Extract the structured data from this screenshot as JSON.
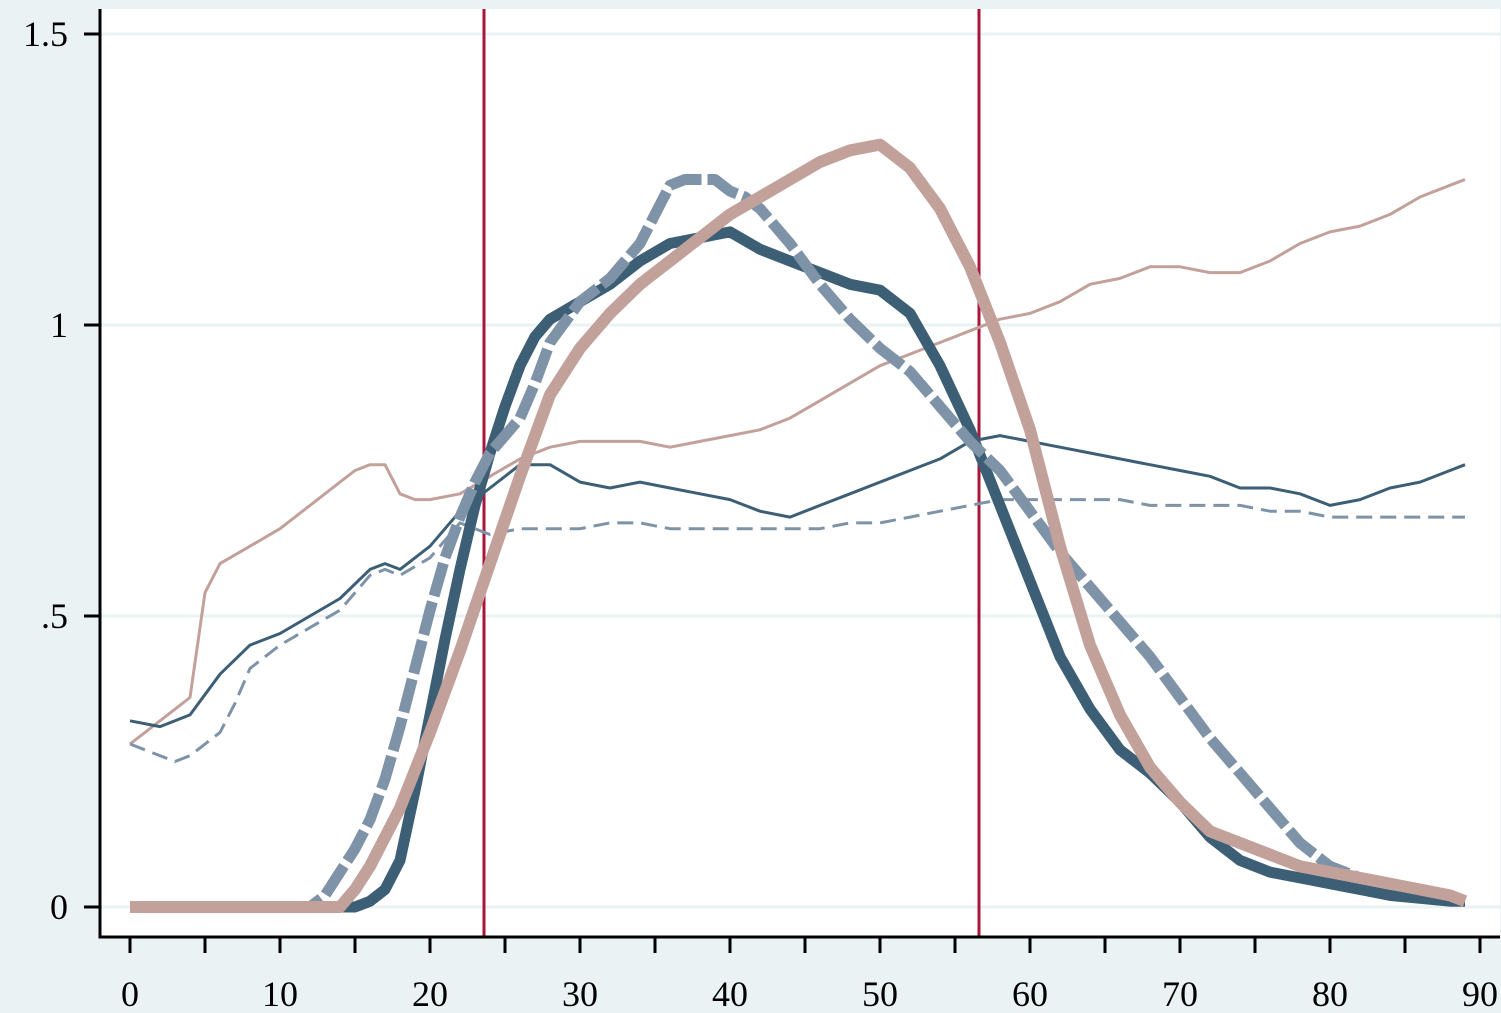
{
  "chart_data": {
    "type": "line",
    "title": "",
    "xlabel": "",
    "ylabel": "",
    "xlim": [
      -1,
      91
    ],
    "ylim": [
      -0.055,
      1.55
    ],
    "x_ticks_major": [
      0,
      10,
      20,
      30,
      40,
      50,
      60,
      70,
      80,
      90
    ],
    "x_tick_labels": [
      "0",
      "10",
      "20",
      "30",
      "40",
      "50",
      "60",
      "70",
      "80",
      "90"
    ],
    "x_ticks_minor": [
      5,
      15,
      25,
      35,
      45,
      55,
      65,
      75,
      85
    ],
    "y_ticks": [
      0,
      0.5,
      1,
      1.5
    ],
    "y_tick_labels": [
      "0",
      ".5",
      "1",
      "1.5"
    ],
    "grid": "horizontal",
    "legend": "none",
    "vertical_lines": [
      {
        "x": 23.6,
        "color": "#a8163a"
      },
      {
        "x": 56.6,
        "color": "#a8163a"
      }
    ],
    "series": [
      {
        "style": "thin-solid",
        "color": "#c2a19b",
        "width": 3,
        "dash": "",
        "x": [
          0,
          2,
          4,
          5,
          6,
          8,
          10,
          12,
          14,
          15,
          16,
          17,
          18,
          19,
          20,
          22,
          24,
          26,
          28,
          30,
          32,
          34,
          36,
          38,
          40,
          42,
          44,
          46,
          48,
          50,
          52,
          54,
          56,
          58,
          60,
          62,
          64,
          66,
          68,
          70,
          72,
          74,
          76,
          78,
          80,
          82,
          84,
          86,
          88,
          89
        ],
        "y": [
          0.28,
          0.32,
          0.36,
          0.54,
          0.59,
          0.62,
          0.65,
          0.69,
          0.73,
          0.75,
          0.76,
          0.76,
          0.71,
          0.7,
          0.7,
          0.71,
          0.74,
          0.77,
          0.79,
          0.8,
          0.8,
          0.8,
          0.79,
          0.8,
          0.81,
          0.82,
          0.84,
          0.87,
          0.9,
          0.93,
          0.95,
          0.97,
          0.99,
          1.01,
          1.02,
          1.04,
          1.07,
          1.08,
          1.1,
          1.1,
          1.09,
          1.09,
          1.11,
          1.14,
          1.16,
          1.17,
          1.19,
          1.22,
          1.24,
          1.25
        ]
      },
      {
        "style": "thin-solid",
        "color": "#3c5f76",
        "width": 3,
        "dash": "",
        "x": [
          0,
          2,
          4,
          6,
          8,
          10,
          12,
          14,
          16,
          17,
          18,
          20,
          22,
          24,
          26,
          28,
          30,
          32,
          34,
          36,
          38,
          40,
          42,
          44,
          46,
          48,
          50,
          52,
          54,
          56,
          58,
          60,
          62,
          64,
          66,
          68,
          70,
          72,
          74,
          76,
          78,
          80,
          82,
          84,
          86,
          88,
          89
        ],
        "y": [
          0.32,
          0.31,
          0.33,
          0.4,
          0.45,
          0.47,
          0.5,
          0.53,
          0.58,
          0.59,
          0.58,
          0.62,
          0.68,
          0.72,
          0.76,
          0.76,
          0.73,
          0.72,
          0.73,
          0.72,
          0.71,
          0.7,
          0.68,
          0.67,
          0.69,
          0.71,
          0.73,
          0.75,
          0.77,
          0.8,
          0.81,
          0.8,
          0.79,
          0.78,
          0.77,
          0.76,
          0.75,
          0.74,
          0.72,
          0.72,
          0.71,
          0.69,
          0.7,
          0.72,
          0.73,
          0.75,
          0.76
        ]
      },
      {
        "style": "thin-dash",
        "color": "#7f93a8",
        "width": 3,
        "dash": "16 8",
        "x": [
          0,
          2,
          3,
          4,
          6,
          7,
          8,
          10,
          12,
          14,
          16,
          17,
          18,
          20,
          22,
          24,
          26,
          28,
          30,
          32,
          34,
          36,
          38,
          40,
          42,
          44,
          46,
          48,
          50,
          52,
          54,
          56,
          58,
          60,
          62,
          64,
          66,
          68,
          70,
          72,
          74,
          76,
          78,
          80,
          82,
          84,
          86,
          88,
          89
        ],
        "y": [
          0.28,
          0.26,
          0.25,
          0.26,
          0.3,
          0.35,
          0.41,
          0.45,
          0.48,
          0.51,
          0.57,
          0.58,
          0.57,
          0.6,
          0.66,
          0.64,
          0.65,
          0.65,
          0.65,
          0.66,
          0.66,
          0.65,
          0.65,
          0.65,
          0.65,
          0.65,
          0.65,
          0.66,
          0.66,
          0.67,
          0.68,
          0.69,
          0.7,
          0.7,
          0.7,
          0.7,
          0.7,
          0.69,
          0.69,
          0.69,
          0.69,
          0.68,
          0.68,
          0.67,
          0.67,
          0.67,
          0.67,
          0.67,
          0.67
        ]
      },
      {
        "style": "thick-solid",
        "color": "#3c5f76",
        "width": 11,
        "dash": "",
        "x": [
          0,
          5,
          10,
          14,
          15,
          16,
          17,
          18,
          19,
          20,
          21,
          22,
          23,
          24,
          25,
          26,
          27,
          28,
          30,
          32,
          34,
          36,
          38,
          40,
          42,
          44,
          46,
          48,
          50,
          52,
          54,
          56,
          58,
          60,
          62,
          64,
          66,
          68,
          70,
          72,
          74,
          76,
          78,
          80,
          82,
          84,
          86,
          88,
          89
        ],
        "y": [
          0,
          0,
          0,
          0,
          0,
          0.01,
          0.03,
          0.08,
          0.2,
          0.33,
          0.46,
          0.58,
          0.69,
          0.78,
          0.86,
          0.93,
          0.98,
          1.01,
          1.04,
          1.07,
          1.11,
          1.14,
          1.15,
          1.16,
          1.13,
          1.11,
          1.09,
          1.07,
          1.06,
          1.02,
          0.93,
          0.82,
          0.69,
          0.56,
          0.43,
          0.34,
          0.27,
          0.23,
          0.18,
          0.12,
          0.08,
          0.06,
          0.05,
          0.04,
          0.03,
          0.02,
          0.015,
          0.01,
          0.01
        ]
      },
      {
        "style": "thick-dash",
        "color": "#7f93a8",
        "width": 11,
        "dash": "34 6",
        "x": [
          0,
          5,
          10,
          12,
          13,
          14,
          15,
          16,
          17,
          18,
          19,
          20,
          21,
          22,
          23,
          24,
          25,
          26,
          27,
          28,
          30,
          32,
          34,
          36,
          37,
          38,
          39,
          40,
          41,
          42,
          44,
          46,
          48,
          50,
          52,
          54,
          56,
          58,
          60,
          62,
          64,
          66,
          68,
          70,
          72,
          74,
          76,
          78,
          80,
          82,
          84,
          86,
          88,
          89
        ],
        "y": [
          0,
          0,
          0,
          0,
          0.02,
          0.06,
          0.1,
          0.15,
          0.22,
          0.31,
          0.41,
          0.51,
          0.6,
          0.67,
          0.73,
          0.78,
          0.81,
          0.84,
          0.9,
          0.97,
          1.04,
          1.08,
          1.14,
          1.24,
          1.25,
          1.25,
          1.25,
          1.23,
          1.22,
          1.2,
          1.14,
          1.07,
          1.01,
          0.96,
          0.92,
          0.86,
          0.8,
          0.75,
          0.68,
          0.61,
          0.55,
          0.49,
          0.43,
          0.36,
          0.29,
          0.23,
          0.17,
          0.11,
          0.07,
          0.05,
          0.04,
          0.03,
          0.02,
          0.01
        ]
      },
      {
        "style": "thick-solid",
        "color": "#c2a19b",
        "width": 12,
        "dash": "",
        "x": [
          0,
          5,
          10,
          14,
          15,
          16,
          18,
          20,
          22,
          24,
          26,
          28,
          30,
          32,
          34,
          36,
          38,
          40,
          42,
          44,
          46,
          48,
          50,
          52,
          54,
          56,
          58,
          60,
          62,
          64,
          66,
          68,
          70,
          72,
          74,
          76,
          78,
          80,
          82,
          84,
          86,
          88,
          89
        ],
        "y": [
          0,
          0,
          0,
          0,
          0.03,
          0.07,
          0.17,
          0.3,
          0.44,
          0.59,
          0.74,
          0.88,
          0.96,
          1.02,
          1.07,
          1.11,
          1.15,
          1.19,
          1.22,
          1.25,
          1.28,
          1.3,
          1.31,
          1.27,
          1.2,
          1.1,
          0.97,
          0.82,
          0.62,
          0.45,
          0.33,
          0.24,
          0.18,
          0.13,
          0.11,
          0.09,
          0.07,
          0.06,
          0.05,
          0.04,
          0.03,
          0.02,
          0.01
        ]
      }
    ]
  }
}
